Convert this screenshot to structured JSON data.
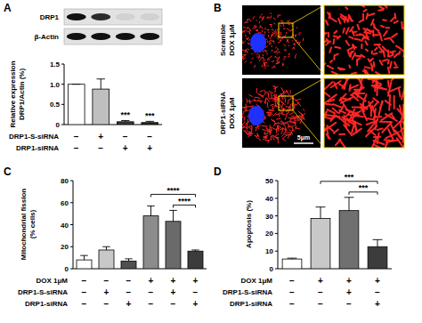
{
  "panel_labels": [
    "A",
    "B",
    "C",
    "D"
  ],
  "blot": {
    "rows": [
      "DRP1",
      "β-Actin"
    ]
  },
  "microscopy": {
    "rows": [
      "Scramble\nDOX 1μM",
      "DRP1-siRNA\nDOX 1μM"
    ],
    "scale_bar": "5μm"
  },
  "chart_data": [
    {
      "type": "bar",
      "ylabel": "Relative expression\nDRP1/Actin (%)",
      "categories": [
        null,
        null,
        null,
        null
      ],
      "values": [
        1.0,
        0.88,
        0.07,
        0.05
      ],
      "errors": [
        0,
        0.25,
        0.03,
        0.03
      ],
      "colors": [
        "#ffffff",
        "#bfbfbf",
        "#3a3a3a",
        "#2a2a2a"
      ],
      "ylim": [
        0,
        1.5
      ],
      "yticks": [
        0,
        0.5,
        {
          "value": 1,
          "label": "1.0"
        },
        1.5
      ],
      "conditions": [
        {
          "label": "DRP1-S-siRNA",
          "values": [
            "−",
            "+",
            "−",
            "−"
          ]
        },
        {
          "label": "DRP1-siRNA",
          "values": [
            "−",
            "−",
            "+",
            "+"
          ]
        }
      ],
      "annotations": [
        {
          "text": "***",
          "bars": [
            2
          ]
        },
        {
          "text": "***",
          "bars": [
            3
          ]
        }
      ]
    },
    {
      "type": "bar",
      "ylabel": "Mitochondrial fission\n(% cells)",
      "categories": [
        null,
        null,
        null,
        null,
        null,
        null
      ],
      "values": [
        8,
        17,
        7,
        48,
        43,
        16
      ],
      "errors": [
        4,
        3,
        2,
        9,
        10,
        1
      ],
      "colors": [
        "#ffffff",
        "#c8c8c8",
        "#505050",
        "#8c8c8c",
        "#6a6a6a",
        "#3c3c3c"
      ],
      "ylim": [
        0,
        80
      ],
      "yticks": [
        0,
        20,
        40,
        60,
        80
      ],
      "conditions": [
        {
          "label": "DOX 1μM",
          "values": [
            "−",
            "−",
            "−",
            "+",
            "+",
            "+"
          ]
        },
        {
          "label": "DRP1-S-siRNA",
          "values": [
            "−",
            "+",
            "−",
            "−",
            "+",
            "−"
          ]
        },
        {
          "label": "DRP1-siRNA",
          "values": [
            "−",
            "−",
            "+",
            "−",
            "−",
            "+"
          ]
        }
      ],
      "annotations": [
        {
          "text": "****",
          "bars": [
            3,
            5
          ]
        },
        {
          "text": "****",
          "bars": [
            4,
            5
          ]
        }
      ]
    },
    {
      "type": "bar",
      "ylabel": "Apoptosis (%)",
      "categories": [
        null,
        null,
        null,
        null
      ],
      "values": [
        5.5,
        28.5,
        33,
        12.5
      ],
      "errors": [
        0.5,
        6.5,
        7.5,
        4
      ],
      "colors": [
        "#ffffff",
        "#c8c8c8",
        "#707070",
        "#3c3c3c"
      ],
      "ylim": [
        0,
        50
      ],
      "yticks": [
        0,
        10,
        20,
        30,
        40,
        50
      ],
      "conditions": [
        {
          "label": "DOX 1μM",
          "values": [
            "−",
            "+",
            "+",
            "+"
          ]
        },
        {
          "label": "DRP1-S-siRNA",
          "values": [
            "−",
            "−",
            "+",
            "−"
          ]
        },
        {
          "label": "DRP1-siRNA",
          "values": [
            "−",
            "−",
            "−",
            "+"
          ]
        }
      ],
      "annotations": [
        {
          "text": "***",
          "bars": [
            1,
            3
          ]
        },
        {
          "text": "***",
          "bars": [
            2,
            3
          ]
        }
      ]
    }
  ]
}
